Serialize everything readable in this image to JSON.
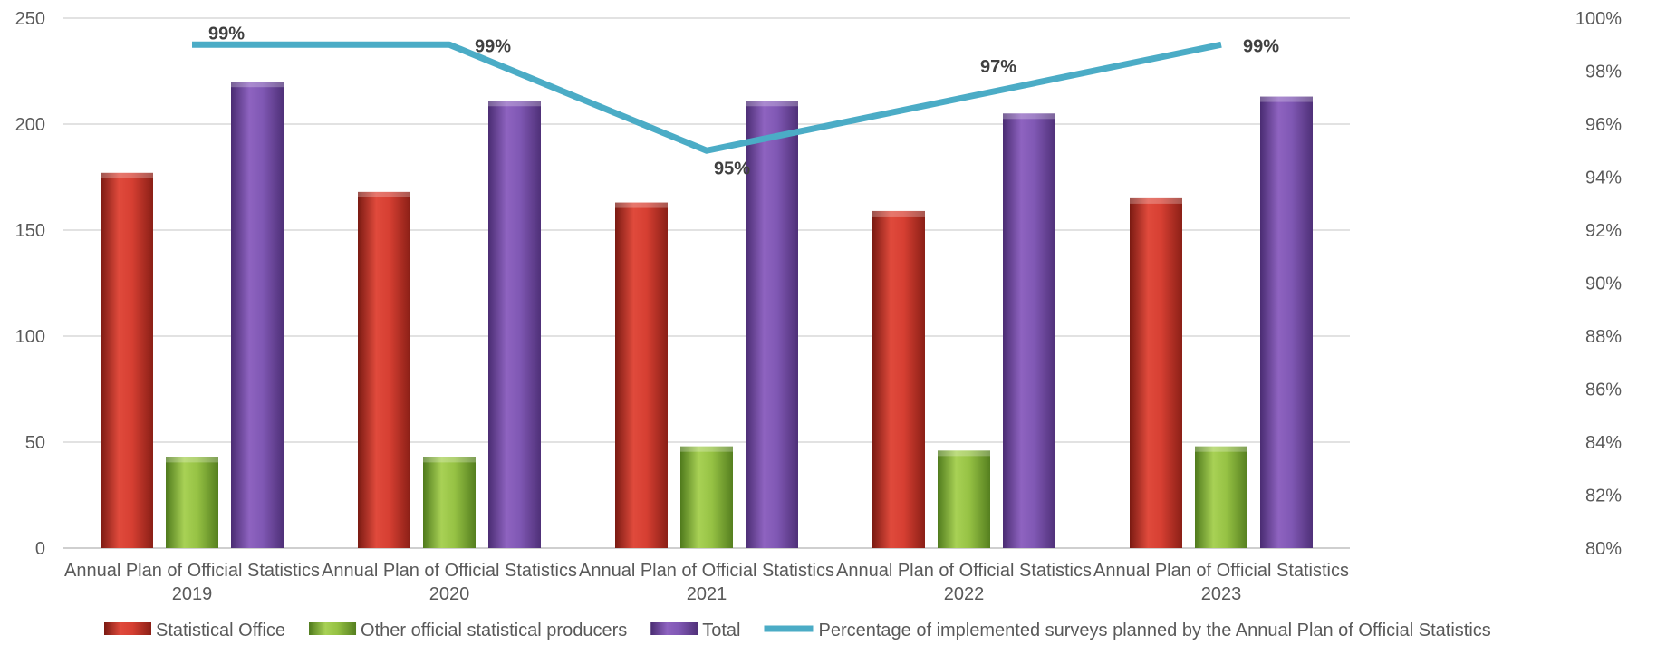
{
  "chart_data": {
    "type": "bar",
    "categories": [
      [
        "Annual Plan of Official Statistics",
        "2019"
      ],
      [
        "Annual Plan of Official Statistics",
        "2020"
      ],
      [
        "Annual Plan of Official Statistics",
        "2021"
      ],
      [
        "Annual Plan of Official Statistics",
        "2022"
      ],
      [
        "Annual Plan of Official Statistics",
        "2023"
      ]
    ],
    "series": [
      {
        "name": "Statistical Office",
        "type": "bar",
        "axis": "left",
        "color": "#c0392b",
        "values": [
          177,
          168,
          163,
          159,
          165
        ]
      },
      {
        "name": "Other official statistical producers",
        "type": "bar",
        "axis": "left",
        "color": "#8dbb3c",
        "values": [
          43,
          43,
          48,
          46,
          48
        ]
      },
      {
        "name": "Total",
        "type": "bar",
        "axis": "left",
        "color": "#7b52a8",
        "values": [
          220,
          211,
          211,
          205,
          213
        ]
      },
      {
        "name": "Percentage of implemented surveys planned by the Annual Plan of Official Statistics",
        "type": "line",
        "axis": "right",
        "color": "#4bacc6",
        "values": [
          99,
          99,
          95,
          97,
          99
        ],
        "labels": [
          "99%",
          "99%",
          "95%",
          "97%",
          "99%"
        ]
      }
    ],
    "y_left": {
      "min": 0,
      "max": 250,
      "ticks": [
        "0",
        "50",
        "100",
        "150",
        "200",
        "250"
      ]
    },
    "y_right": {
      "min": 80,
      "max": 100,
      "ticks": [
        "80%",
        "82%",
        "84%",
        "86%",
        "88%",
        "90%",
        "92%",
        "94%",
        "96%",
        "98%",
        "100%"
      ]
    },
    "grid": true,
    "legend_position": "bottom"
  }
}
